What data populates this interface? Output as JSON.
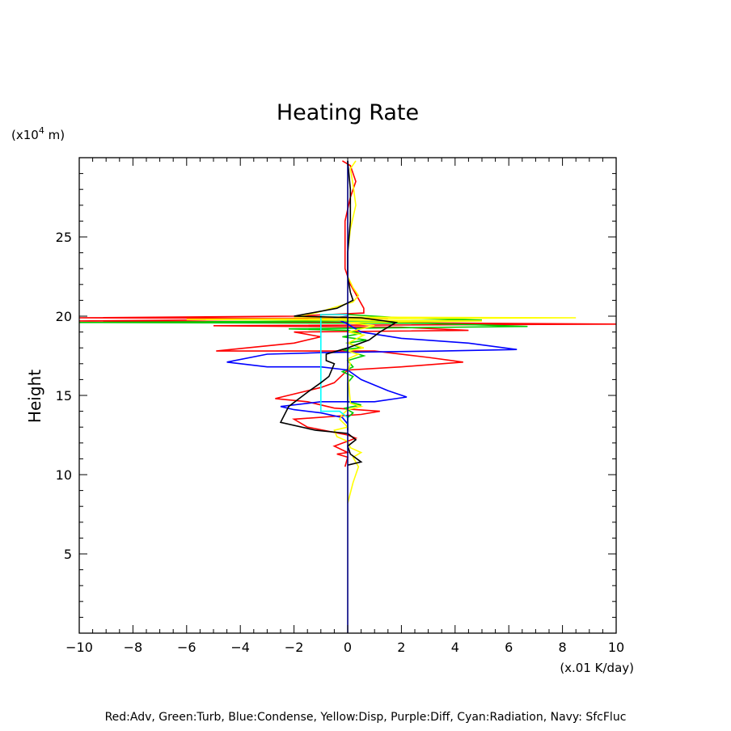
{
  "chart_data": {
    "type": "line",
    "title": "Heating Rate",
    "ylabel": "Height",
    "xunit": "(x.01 K/day)",
    "yunit_prefix": "(x10",
    "yunit_exp": "4",
    "yunit_suffix": " m)",
    "legend_text": "Red:Adv, Green:Turb, Blue:Condense, Yellow:Disp, Purple:Diff, Cyan:Radiation, Navy: SfcFluc",
    "xlim": [
      -10,
      10
    ],
    "ylim": [
      0,
      30
    ],
    "grid": false,
    "x_ticks": [
      -10,
      -8,
      -6,
      -4,
      -2,
      0,
      2,
      4,
      6,
      8,
      10
    ],
    "x_tick_labels": [
      "−10",
      "−8",
      "−6",
      "−4",
      "−2",
      "0",
      "2",
      "4",
      "6",
      "8",
      "10"
    ],
    "y_ticks": [
      5,
      10,
      15,
      20,
      25
    ],
    "y_tick_labels": [
      "5",
      "10",
      "15",
      "20",
      "25"
    ],
    "series": [
      {
        "name": "Adv",
        "color": "#ff0000",
        "points": [
          [
            -0.2,
            29.8
          ],
          [
            0.1,
            29.5
          ],
          [
            0.3,
            28.5
          ],
          [
            0.1,
            27.5
          ],
          [
            -0.1,
            26
          ],
          [
            -0.1,
            24
          ],
          [
            -0.1,
            23
          ],
          [
            0.1,
            22
          ],
          [
            0.6,
            20.5
          ],
          [
            0.6,
            20.2
          ],
          [
            -2,
            20.0
          ],
          [
            -10,
            19.9
          ],
          [
            1.5,
            19.85
          ],
          [
            -10,
            19.7
          ],
          [
            10,
            19.5
          ],
          [
            -5,
            19.4
          ],
          [
            2,
            19.3
          ],
          [
            4.5,
            19.1
          ],
          [
            -2,
            19.0
          ],
          [
            -1,
            18.7
          ],
          [
            -2,
            18.3
          ],
          [
            -4.9,
            17.8
          ],
          [
            1,
            17.8
          ],
          [
            3,
            17.4
          ],
          [
            4.3,
            17.1
          ],
          [
            2,
            16.8
          ],
          [
            0,
            16.6
          ],
          [
            -0.5,
            15.8
          ],
          [
            -1,
            15.5
          ],
          [
            -2.7,
            14.8
          ],
          [
            -1.5,
            14.6
          ],
          [
            -0.5,
            14.2
          ],
          [
            1.2,
            14.0
          ],
          [
            0.5,
            13.8
          ],
          [
            -2,
            13.5
          ],
          [
            -1.5,
            13.0
          ],
          [
            0,
            12.5
          ],
          [
            0.3,
            12.3
          ],
          [
            -0.5,
            11.8
          ],
          [
            0,
            11.4
          ],
          [
            -0.4,
            11.3
          ],
          [
            0,
            11.1
          ],
          [
            -0.1,
            10.5
          ]
        ]
      },
      {
        "name": "Turb",
        "color": "#00cc00",
        "points": [
          [
            0,
            20.1
          ],
          [
            2,
            19.9
          ],
          [
            5,
            19.75
          ],
          [
            -10,
            19.6
          ],
          [
            3,
            19.55
          ],
          [
            6.7,
            19.35
          ],
          [
            -2.2,
            19.2
          ],
          [
            0,
            19.1
          ],
          [
            0.5,
            18.9
          ],
          [
            -0.2,
            18.7
          ],
          [
            0.7,
            18.5
          ],
          [
            0,
            18.3
          ],
          [
            0.5,
            18.0
          ],
          [
            -0.2,
            17.9
          ],
          [
            0.6,
            17.5
          ],
          [
            0,
            17.2
          ],
          [
            0.2,
            16.8
          ],
          [
            -0.2,
            16.5
          ],
          [
            0.2,
            16.2
          ],
          [
            0,
            15.8
          ],
          [
            0,
            14.6
          ],
          [
            0.5,
            14.4
          ],
          [
            -0.1,
            14.2
          ],
          [
            0.2,
            13.9
          ],
          [
            0,
            13.6
          ],
          [
            0,
            12.8
          ]
        ]
      },
      {
        "name": "Condense",
        "color": "#0000ff",
        "points": [
          [
            0,
            20.0
          ],
          [
            -0.5,
            19.9
          ],
          [
            0,
            19.5
          ],
          [
            0.5,
            19.0
          ],
          [
            2,
            18.6
          ],
          [
            4.5,
            18.3
          ],
          [
            6.3,
            17.9
          ],
          [
            3.5,
            17.8
          ],
          [
            -1,
            17.7
          ],
          [
            -3,
            17.6
          ],
          [
            -4.5,
            17.1
          ],
          [
            -3,
            16.8
          ],
          [
            -1,
            16.8
          ],
          [
            0,
            16.6
          ],
          [
            0.5,
            16.0
          ],
          [
            1.5,
            15.3
          ],
          [
            2.2,
            14.9
          ],
          [
            1,
            14.6
          ],
          [
            -1,
            14.6
          ],
          [
            -2.5,
            14.3
          ],
          [
            -2,
            14.1
          ],
          [
            -1,
            13.9
          ],
          [
            -0.2,
            13.6
          ],
          [
            0,
            13.2
          ],
          [
            0,
            12.8
          ]
        ]
      },
      {
        "name": "Disp",
        "color": "#ffff00",
        "points": [
          [
            0.3,
            29.8
          ],
          [
            0.1,
            29.3
          ],
          [
            0.2,
            28.3
          ],
          [
            0.3,
            27.0
          ],
          [
            0.1,
            25.5
          ],
          [
            0,
            24
          ],
          [
            0,
            22.5
          ],
          [
            0.2,
            21.8
          ],
          [
            0.4,
            21.3
          ],
          [
            0.2,
            20.9
          ],
          [
            -1.2,
            20.2
          ],
          [
            -2,
            19.95
          ],
          [
            8.5,
            19.9
          ],
          [
            -6,
            19.8
          ],
          [
            5,
            19.7
          ],
          [
            0,
            19.6
          ],
          [
            1,
            19.4
          ],
          [
            0,
            19.0
          ],
          [
            0.6,
            18.8
          ],
          [
            0,
            18.3
          ],
          [
            0.6,
            18.0
          ],
          [
            0,
            17.8
          ],
          [
            0.4,
            17.6
          ],
          [
            0,
            17.3
          ],
          [
            0.1,
            17
          ],
          [
            0,
            16.5
          ],
          [
            0.1,
            14.5
          ],
          [
            0.5,
            14.3
          ],
          [
            0,
            14.1
          ],
          [
            -0.2,
            13.8
          ],
          [
            -0.3,
            13.5
          ],
          [
            0,
            13
          ],
          [
            -0.5,
            12.8
          ],
          [
            -0.4,
            12.4
          ],
          [
            0,
            12.1
          ],
          [
            0.1,
            11.7
          ],
          [
            0.5,
            11.4
          ],
          [
            0.2,
            11.1
          ],
          [
            0.4,
            10.5
          ],
          [
            0.2,
            9.5
          ],
          [
            0,
            8.2
          ]
        ]
      },
      {
        "name": "Radiation",
        "color": "#00ffff",
        "points": [
          [
            0,
            20.1
          ],
          [
            -1,
            20.1
          ],
          [
            -1,
            14.0
          ],
          [
            -0.3,
            14.0
          ],
          [
            0,
            13.6
          ],
          [
            0,
            13.0
          ]
        ]
      },
      {
        "name": "Total",
        "color": "#000000",
        "points": [
          [
            0,
            29.8
          ],
          [
            0.1,
            28
          ],
          [
            0.1,
            26
          ],
          [
            0,
            24
          ],
          [
            0,
            22.5
          ],
          [
            0.1,
            21.5
          ],
          [
            0.2,
            21.0
          ],
          [
            -0.4,
            20.5
          ],
          [
            -2,
            20.0
          ],
          [
            0.5,
            19.9
          ],
          [
            1.8,
            19.6
          ],
          [
            1.2,
            19.0
          ],
          [
            0.8,
            18.5
          ],
          [
            0,
            18.0
          ],
          [
            -0.8,
            17.6
          ],
          [
            -0.8,
            17.2
          ],
          [
            -0.5,
            17.0
          ],
          [
            -0.7,
            16.2
          ],
          [
            -1,
            15.8
          ],
          [
            -1.5,
            15.2
          ],
          [
            -2.2,
            14.3
          ],
          [
            -2.5,
            13.3
          ],
          [
            -1.2,
            12.8
          ],
          [
            0,
            12.6
          ],
          [
            0.3,
            12.2
          ],
          [
            0,
            11.8
          ],
          [
            0.1,
            11.3
          ],
          [
            0.5,
            10.8
          ],
          [
            0,
            10.6
          ]
        ]
      },
      {
        "name": "SfcFluc",
        "color": "#000080",
        "points": [
          [
            0,
            29.8
          ],
          [
            0,
            0
          ]
        ]
      }
    ]
  }
}
